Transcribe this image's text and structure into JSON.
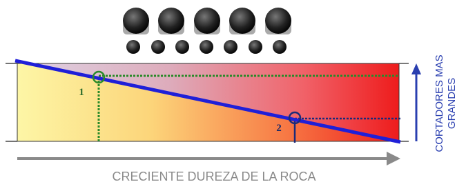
{
  "labels": {
    "point_1": "1",
    "point_2": "2",
    "y_axis": [
      "CORTADORES MAS",
      "GRANDES"
    ],
    "x_axis": "CRECIENTE DUREZA DE LA ROCA"
  }
}
